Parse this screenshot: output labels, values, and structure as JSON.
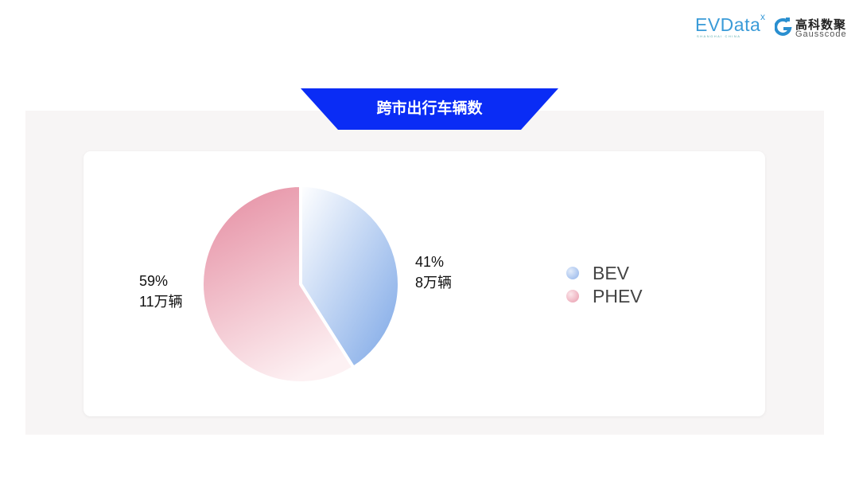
{
  "logos": {
    "evdata": {
      "text": "EVData",
      "sub": "SHANGHAI CHINA",
      "mark": "x"
    },
    "gausscode": {
      "cn": "高科数聚",
      "en": "Gausscode"
    }
  },
  "colors": {
    "banner": "#0a2cf5",
    "panel": "#f7f5f5",
    "bev": "#7ba6e6",
    "phev": "#e691a5"
  },
  "chart_data": {
    "type": "pie",
    "title": "跨市出行车辆数",
    "start_angle": "top, clockwise",
    "slices": [
      {
        "name": "BEV",
        "percent": 41,
        "percent_label": "41%",
        "value_label": "8万辆",
        "color_from": "#ffffff",
        "color_to": "#7ba6e6"
      },
      {
        "name": "PHEV",
        "percent": 59,
        "percent_label": "59%",
        "value_label": "11万辆",
        "color_from": "#e691a5",
        "color_to": "#fdf1f3"
      }
    ],
    "legend_placement": "right"
  }
}
